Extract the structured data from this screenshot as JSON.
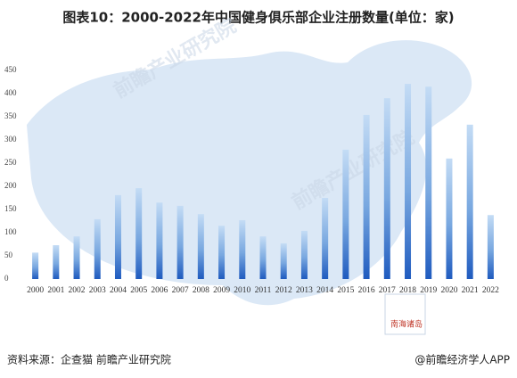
{
  "chart_data": {
    "type": "bar",
    "title": "图表10：2000-2022年中国健身俱乐部企业注册数量(单位：家)",
    "categories": [
      "2000",
      "2001",
      "2002",
      "2003",
      "2004",
      "2005",
      "2006",
      "2007",
      "2008",
      "2009",
      "2010",
      "2011",
      "2012",
      "2013",
      "2014",
      "2015",
      "2016",
      "2017",
      "2018",
      "2019",
      "2020",
      "2021",
      "2022"
    ],
    "values": [
      57,
      73,
      92,
      129,
      181,
      196,
      165,
      158,
      140,
      115,
      127,
      92,
      77,
      104,
      175,
      279,
      354,
      390,
      421,
      415,
      260,
      333,
      138
    ],
    "color": "#1f5bbf",
    "ylim": [
      0,
      450
    ],
    "yticks": [
      0,
      50,
      100,
      150,
      200,
      250,
      300,
      350,
      400,
      450
    ],
    "grid": false,
    "map_label": "南海诸岛",
    "watermark": "前瞻产业研究院",
    "source": "资料来源：企查猫 前瞻产业研究院",
    "credit": "@前瞻经济学人APP"
  }
}
